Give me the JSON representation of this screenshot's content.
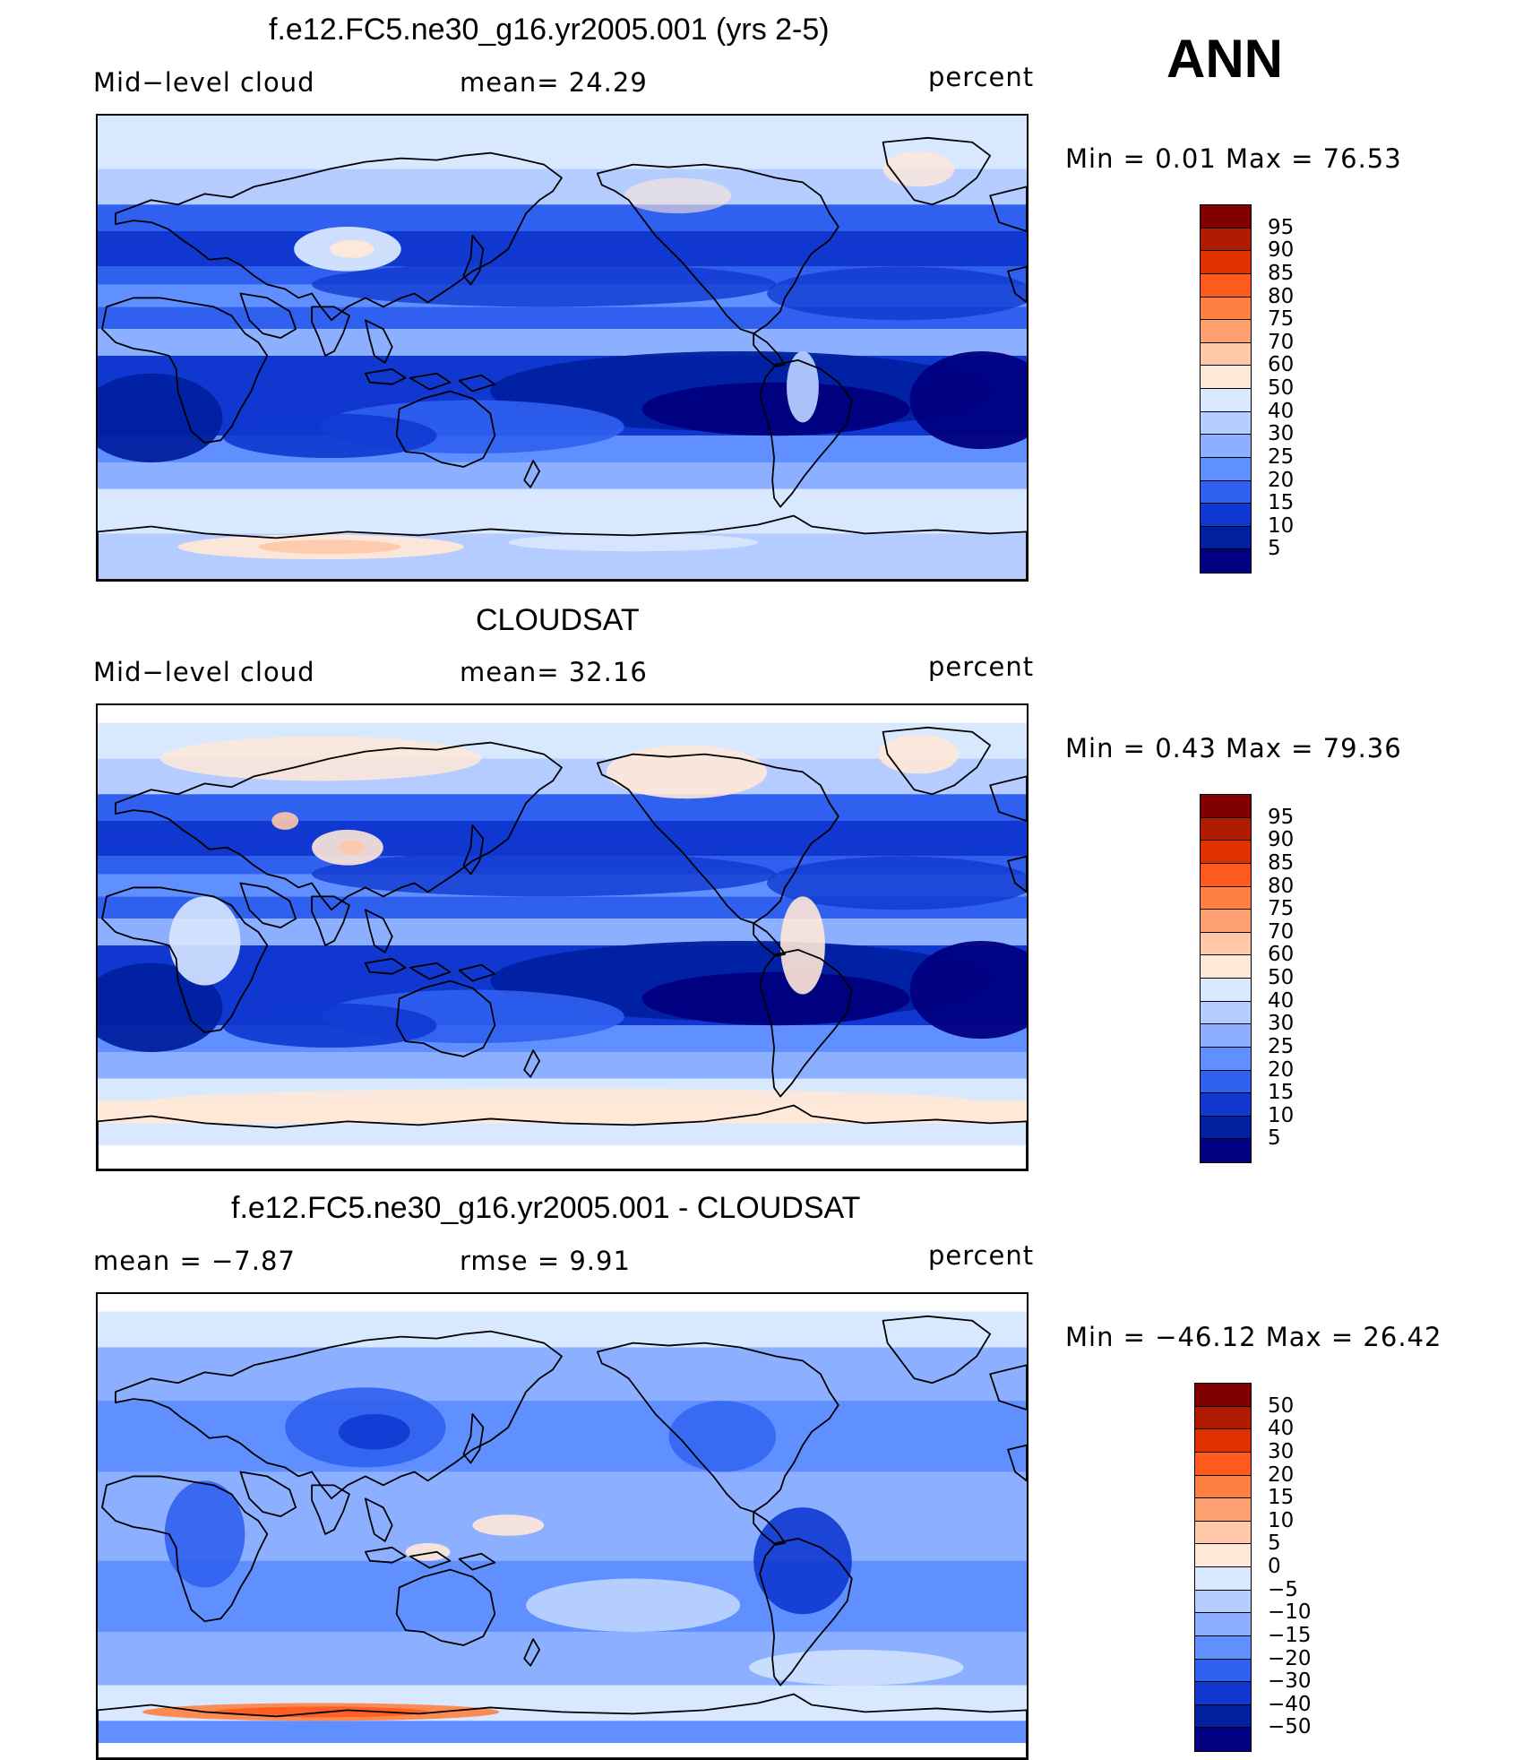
{
  "season": "ANN",
  "panels": [
    {
      "title": "f.e12.FC5.ne30_g16.yr2005.001 (yrs 2-5)",
      "left_label": "Mid−level  cloud",
      "center_label": "mean=   24.29",
      "units": "percent",
      "minmax": "Min  =     0.01  Max  =    76.53",
      "field": "model",
      "colorbar": {
        "labels": [
          "95",
          "90",
          "85",
          "80",
          "75",
          "70",
          "60",
          "50",
          "40",
          "30",
          "25",
          "20",
          "15",
          "10",
          "5"
        ],
        "colors": [
          "#800000",
          "#b01a00",
          "#e03000",
          "#ff5a1e",
          "#ff8040",
          "#ffa070",
          "#ffc8a8",
          "#ffe8d8",
          "#d8e8ff",
          "#b4ccff",
          "#8cb0ff",
          "#6090ff",
          "#3060f0",
          "#1038d0",
          "#0020a0",
          "#000080"
        ]
      }
    },
    {
      "title": "CLOUDSAT",
      "left_label": "Mid−level  cloud",
      "center_label": "mean=   32.16",
      "units": "percent",
      "minmax": "Min  =     0.43  Max  =    79.36",
      "field": "obs",
      "colorbar": {
        "labels": [
          "95",
          "90",
          "85",
          "80",
          "75",
          "70",
          "60",
          "50",
          "40",
          "30",
          "25",
          "20",
          "15",
          "10",
          "5"
        ],
        "colors": [
          "#800000",
          "#b01a00",
          "#e03000",
          "#ff5a1e",
          "#ff8040",
          "#ffa070",
          "#ffc8a8",
          "#ffe8d8",
          "#d8e8ff",
          "#b4ccff",
          "#8cb0ff",
          "#6090ff",
          "#3060f0",
          "#1038d0",
          "#0020a0",
          "#000080"
        ]
      }
    },
    {
      "title": "f.e12.FC5.ne30_g16.yr2005.001 - CLOUDSAT",
      "left_label": "mean  =    −7.87",
      "center_label": "rmse  =     9.91",
      "units": "percent",
      "minmax": "Min  = −46.12  Max  =    26.42",
      "field": "diff",
      "colorbar": {
        "labels": [
          "50",
          "40",
          "30",
          "20",
          "15",
          "10",
          "5",
          "0",
          "−5",
          "−10",
          "−15",
          "−20",
          "−30",
          "−40",
          "−50"
        ],
        "colors": [
          "#800000",
          "#b01a00",
          "#e03000",
          "#ff5a1e",
          "#ff8040",
          "#ffa070",
          "#ffc8a8",
          "#ffe8d8",
          "#d8e8ff",
          "#b4ccff",
          "#8cb0ff",
          "#6090ff",
          "#3060f0",
          "#1038d0",
          "#0020a0",
          "#000080"
        ]
      }
    }
  ]
}
